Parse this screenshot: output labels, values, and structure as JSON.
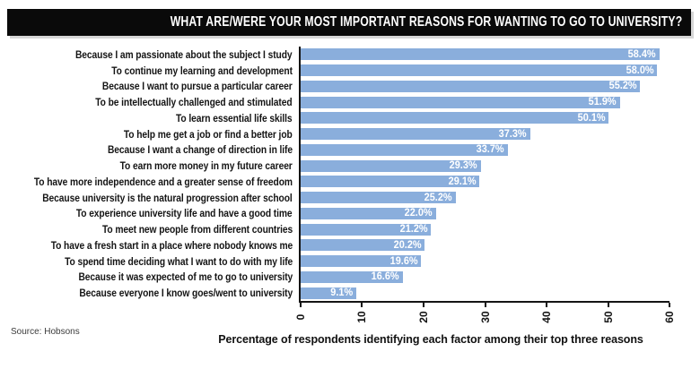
{
  "title": "WHAT ARE/WERE YOUR MOST IMPORTANT REASONS FOR WANTING TO GO TO UNIVERSITY?",
  "source": "Source: Hobsons",
  "colors": {
    "bar": "#8AAEDC",
    "title_bg": "#0A0A0A",
    "value_label": "#FFFFFF",
    "axis": "#141414"
  },
  "chart_data": {
    "type": "bar",
    "orientation": "horizontal",
    "title": "WHAT ARE/WERE YOUR MOST IMPORTANT REASONS FOR WANTING TO GO TO UNIVERSITY?",
    "xlabel": "Percentage of respondents identifying each factor among their top three reasons",
    "ylabel": "",
    "xlim": [
      0,
      60
    ],
    "xticks": [
      0,
      10,
      20,
      30,
      40,
      50,
      60
    ],
    "grid": false,
    "legend": false,
    "tick_label_rotation": -90,
    "categories": [
      "Because I am passionate about the subject I study",
      "To continue my learning and development",
      "Because I want to pursue a particular career",
      "To be intellectually challenged and stimulated",
      "To learn essential life skills",
      "To help me get a job or find a better job",
      "Because I want a change of direction in life",
      "To earn more money in my future career",
      "To have more independence and a greater sense of freedom",
      "Because university is the natural progression after school",
      "To experience university life and have a good time",
      "To meet new people from different countries",
      "To have a fresh start in a place where nobody knows me",
      "To spend time deciding what I want to do with my life",
      "Because it was expected of me to go to university",
      "Because everyone I know goes/went to university"
    ],
    "values": [
      58.4,
      58.0,
      55.2,
      51.9,
      50.1,
      37.3,
      33.7,
      29.3,
      29.1,
      25.2,
      22.0,
      21.2,
      20.2,
      19.6,
      16.6,
      9.1
    ],
    "value_labels": [
      "58.4%",
      "58.0%",
      "55.2%",
      "51.9%",
      "50.1%",
      "37.3%",
      "33.7%",
      "29.3%",
      "29.1%",
      "25.2%",
      "22.0%",
      "21.2%",
      "20.2%",
      "19.6%",
      "16.6%",
      "9.1%"
    ]
  }
}
